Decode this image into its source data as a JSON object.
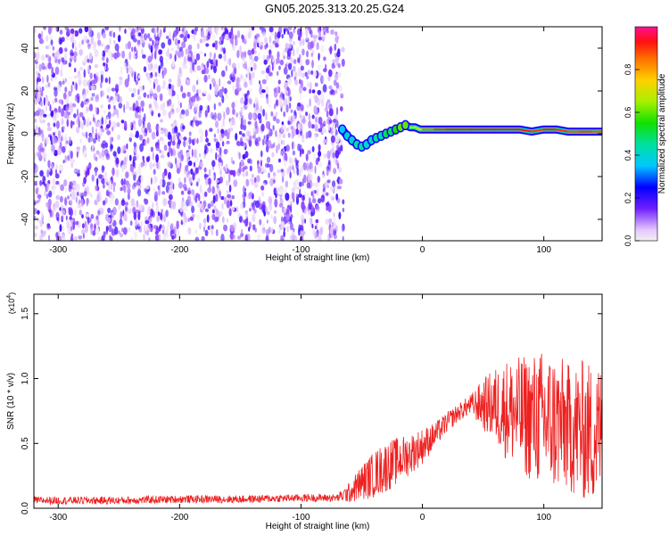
{
  "page": {
    "title": "GN05.2025.313.20.25.G24"
  },
  "chart_data": [
    {
      "type": "heatmap",
      "xlabel": "Height of straight line (km)",
      "ylabel": "Frequency (Hz)",
      "xlim": [
        -320,
        148
      ],
      "ylim": [
        -50,
        50
      ],
      "xticks": [
        -300,
        -200,
        -100,
        0,
        100
      ],
      "yticks": [
        -40,
        -20,
        0,
        20,
        40
      ],
      "noise_region_x": [
        -320,
        -65
      ],
      "noise_peak_amplitude": 0.2,
      "line_trace": {
        "x": [
          -66,
          -62,
          -58,
          -54,
          -50,
          -46,
          -42,
          -38,
          -34,
          -30,
          -26,
          -22,
          -18,
          -14,
          -10,
          -6,
          -2,
          0,
          10,
          20,
          40,
          60,
          80,
          90,
          100,
          110,
          120,
          130,
          140,
          148
        ],
        "y": [
          2,
          -1,
          -3,
          -5,
          -6,
          -5,
          -3,
          -2,
          -1,
          0,
          1,
          2,
          3,
          4,
          3,
          3,
          2,
          2,
          2,
          2,
          2,
          2,
          2,
          1,
          2,
          2,
          1,
          1,
          1,
          1
        ],
        "amplitude": [
          0.35,
          0.4,
          0.4,
          0.45,
          0.45,
          0.4,
          0.4,
          0.45,
          0.45,
          0.5,
          0.5,
          0.55,
          0.6,
          0.6,
          0.65,
          0.7,
          0.75,
          0.85,
          0.9,
          0.92,
          0.95,
          0.95,
          0.92,
          0.9,
          0.92,
          0.9,
          0.88,
          0.9,
          0.88,
          0.85
        ]
      },
      "colorbar": {
        "label": "Normalized spectral amplitude",
        "range": [
          0,
          1
        ],
        "ticks": [
          0.0,
          0.2,
          0.4,
          0.6,
          0.8
        ]
      }
    },
    {
      "type": "line",
      "xlabel": "Height of straight line (km)",
      "ylabel": "SNR (10 * v/v)",
      "y_multiplier": "(x10",
      "y_multiplier_exp": "4",
      "y_multiplier_close": ")",
      "xlim": [
        -320,
        148
      ],
      "ylim": [
        0,
        1.65
      ],
      "xticks": [
        -300,
        -200,
        -100,
        0,
        100
      ],
      "yticks": [
        "0.0",
        "0.5",
        "1.0",
        "1.5"
      ],
      "color": "#ee2020",
      "series": [
        {
          "x": [
            -320,
            -250,
            -200,
            -150,
            -100,
            -70,
            -60,
            -50,
            -40,
            -30,
            -20,
            -10,
            0,
            10,
            20,
            30,
            40,
            50,
            60,
            70,
            80,
            90,
            100,
            110,
            120,
            130,
            140,
            148
          ],
          "y": [
            0.06,
            0.06,
            0.07,
            0.07,
            0.08,
            0.08,
            0.12,
            0.2,
            0.26,
            0.32,
            0.37,
            0.42,
            0.48,
            0.56,
            0.66,
            0.74,
            0.8,
            0.8,
            0.79,
            0.76,
            0.72,
            0.7,
            0.68,
            0.66,
            0.62,
            0.6,
            0.58,
            0.58
          ],
          "amp": [
            0.03,
            0.03,
            0.03,
            0.03,
            0.03,
            0.03,
            0.08,
            0.14,
            0.18,
            0.2,
            0.18,
            0.16,
            0.14,
            0.1,
            0.08,
            0.07,
            0.08,
            0.2,
            0.3,
            0.4,
            0.45,
            0.5,
            0.55,
            0.55,
            0.5,
            0.55,
            0.55,
            0.55
          ]
        }
      ]
    }
  ]
}
